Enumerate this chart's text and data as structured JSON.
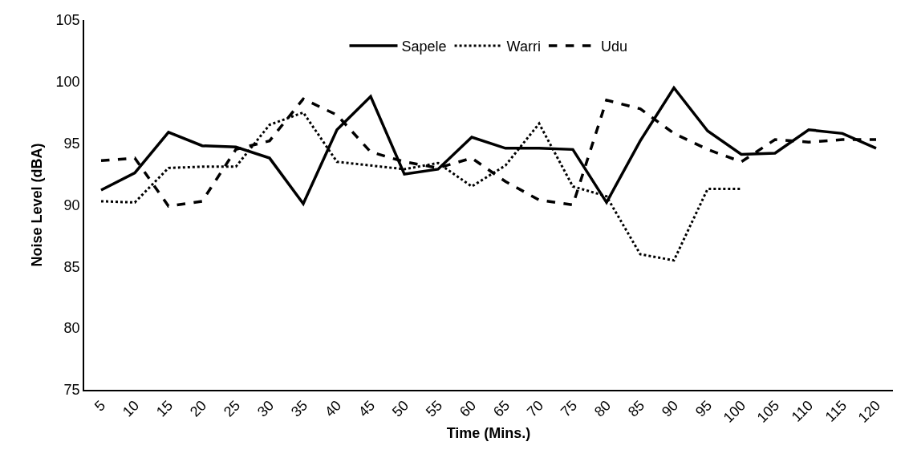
{
  "chart_data": {
    "type": "line",
    "xlabel": "Time (Mins.)",
    "ylabel": "Noise Level (dBA)",
    "categories": [
      "5",
      "10",
      "15",
      "20",
      "25",
      "30",
      "35",
      "40",
      "45",
      "50",
      "55",
      "60",
      "65",
      "70",
      "75",
      "80",
      "85",
      "90",
      "95",
      "100",
      "105",
      "110",
      "115",
      "120"
    ],
    "series": [
      {
        "name": "Sapele",
        "color": "#000000",
        "line_style": "solid",
        "values": [
          91.2,
          92.6,
          95.9,
          94.8,
          94.7,
          93.8,
          90.1,
          96.1,
          98.8,
          92.5,
          92.9,
          95.5,
          94.6,
          94.6,
          94.5,
          90.2,
          95.2,
          99.5,
          96.0,
          94.1,
          94.2,
          96.1,
          95.8,
          94.6
        ]
      },
      {
        "name": "Warri",
        "color": "#000000",
        "line_style": "dotted",
        "values": [
          90.3,
          90.2,
          93.0,
          93.1,
          93.1,
          96.5,
          97.5,
          93.5,
          93.2,
          92.9,
          93.4,
          91.5,
          93.2,
          96.6,
          91.5,
          90.7,
          86.0,
          85.5,
          91.3,
          91.3,
          null,
          null,
          null,
          null
        ]
      },
      {
        "name": "Udu",
        "color": "#000000",
        "line_style": "dashed",
        "values": [
          93.6,
          93.8,
          89.9,
          90.3,
          94.5,
          95.2,
          98.6,
          97.3,
          94.3,
          93.5,
          93.0,
          93.8,
          91.9,
          90.4,
          90.0,
          98.5,
          97.8,
          95.8,
          94.5,
          93.5,
          95.3,
          95.1,
          95.3,
          95.3
        ]
      }
    ],
    "ylim": [
      75,
      105
    ],
    "yticks": [
      75,
      80,
      85,
      90,
      95,
      100,
      105
    ],
    "grid": false,
    "legend": "top",
    "marker": "none"
  }
}
